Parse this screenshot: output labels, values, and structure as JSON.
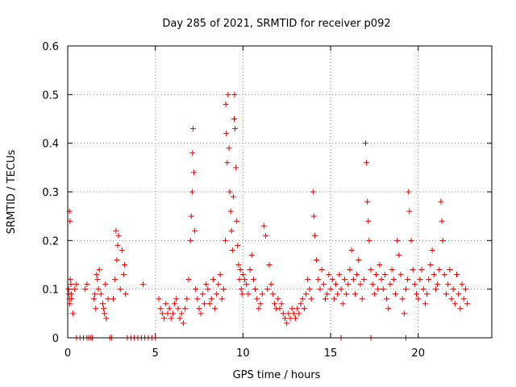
{
  "chart_data": {
    "type": "scatter",
    "title": "Day 285 of 2021, SRMTID for receiver p092",
    "xlabel": "GPS time / hours",
    "ylabel": "SRMTID / TECUs",
    "xlim": [
      0,
      24.2
    ],
    "ylim": [
      0,
      0.6
    ],
    "xticks": [
      0,
      5,
      10,
      15,
      20
    ],
    "xtick_labels": [
      "0",
      "5",
      "10",
      "15",
      "20"
    ],
    "yticks": [
      0,
      0.1,
      0.2,
      0.3,
      0.4,
      0.5,
      0.6
    ],
    "ytick_labels": [
      "0",
      "0.1",
      "0.2",
      "0.3",
      "0.4",
      "0.5",
      "0.6"
    ],
    "grid": true,
    "series": [
      {
        "name": "SRMTID",
        "color": "#e00000",
        "marker": "plus",
        "x": [
          0.05,
          0.08,
          0.1,
          0.12,
          0.15,
          0.18,
          0.2,
          0.22,
          0.1,
          0.13,
          0.3,
          0.4,
          0.5,
          1.0,
          1.1,
          1.5,
          1.6,
          1.7,
          1.8,
          1.9,
          2.0,
          2.1,
          2.2,
          2.3,
          1.55,
          1.65,
          1.75,
          2.05,
          2.15,
          2.6,
          2.7,
          2.8,
          2.9,
          3.0,
          3.1,
          3.2,
          3.3,
          2.75,
          2.85,
          3.25,
          4.3,
          5.2,
          5.3,
          5.4,
          5.5,
          5.6,
          5.7,
          5.8,
          5.9,
          6.0,
          6.1,
          6.2,
          6.3,
          6.4,
          6.5,
          6.6,
          6.7,
          6.8,
          6.9,
          7.0,
          7.05,
          7.1,
          7.12,
          7.15,
          7.2,
          7.25,
          7.3,
          7.4,
          7.5,
          7.6,
          7.7,
          7.8,
          7.9,
          8.0,
          8.1,
          8.2,
          8.3,
          8.4,
          8.5,
          8.6,
          8.7,
          8.8,
          8.9,
          9.0,
          9.02,
          9.05,
          9.1,
          9.15,
          9.2,
          9.25,
          9.3,
          9.35,
          9.4,
          9.45,
          9.5,
          9.52,
          9.55,
          9.6,
          9.65,
          9.7,
          9.75,
          9.8,
          9.85,
          9.9,
          9.95,
          10.0,
          10.1,
          10.2,
          10.3,
          10.4,
          10.5,
          10.6,
          10.7,
          10.8,
          10.9,
          11.0,
          11.1,
          11.2,
          11.3,
          11.4,
          11.5,
          11.6,
          11.7,
          11.8,
          11.9,
          12.0,
          12.1,
          12.2,
          12.3,
          12.4,
          12.5,
          12.6,
          12.7,
          12.8,
          12.9,
          13.0,
          13.1,
          13.2,
          13.3,
          13.4,
          13.5,
          13.6,
          13.7,
          13.8,
          13.9,
          14.0,
          14.05,
          14.1,
          14.2,
          14.3,
          14.4,
          14.5,
          14.6,
          14.7,
          14.8,
          14.9,
          15.0,
          15.1,
          15.2,
          15.3,
          15.4,
          15.5,
          15.6,
          15.7,
          15.8,
          15.9,
          16.0,
          16.1,
          16.2,
          16.3,
          16.4,
          16.5,
          16.6,
          16.7,
          16.8,
          16.9,
          17.0,
          17.05,
          17.1,
          17.15,
          17.2,
          17.3,
          17.4,
          17.5,
          17.6,
          17.7,
          17.8,
          17.9,
          18.0,
          18.1,
          18.2,
          18.3,
          18.4,
          18.5,
          18.6,
          18.7,
          18.8,
          18.9,
          19.0,
          19.1,
          19.2,
          19.3,
          19.4,
          19.45,
          19.5,
          19.6,
          19.7,
          19.8,
          19.9,
          20.0,
          20.1,
          20.2,
          20.3,
          20.4,
          20.5,
          20.6,
          20.7,
          20.8,
          20.9,
          21.0,
          21.1,
          21.2,
          21.3,
          21.35,
          21.4,
          21.5,
          21.6,
          21.7,
          21.8,
          21.9,
          22.0,
          22.1,
          22.2,
          22.3,
          22.4,
          22.5,
          22.6,
          22.7,
          22.8,
          0.5,
          0.7,
          0.9,
          1.1,
          1.2,
          1.3,
          1.4,
          2.4,
          2.5,
          3.4,
          3.6,
          3.8,
          4.0,
          4.2,
          4.4,
          4.6,
          4.8,
          5.0,
          15.6,
          17.3,
          19.3
        ],
        "y": [
          0.1,
          0.09,
          0.08,
          0.07,
          0.12,
          0.11,
          0.09,
          0.08,
          0.26,
          0.24,
          0.05,
          0.1,
          0.11,
          0.1,
          0.11,
          0.08,
          0.06,
          0.12,
          0.14,
          0.09,
          0.07,
          0.05,
          0.04,
          0.08,
          0.09,
          0.13,
          0.1,
          0.06,
          0.11,
          0.08,
          0.12,
          0.16,
          0.21,
          0.1,
          0.18,
          0.13,
          0.09,
          0.22,
          0.19,
          0.15,
          0.11,
          0.08,
          0.06,
          0.05,
          0.04,
          0.07,
          0.05,
          0.06,
          0.04,
          0.05,
          0.07,
          0.08,
          0.06,
          0.04,
          0.05,
          0.03,
          0.06,
          0.08,
          0.12,
          0.2,
          0.25,
          0.3,
          0.38,
          0.43,
          0.34,
          0.22,
          0.1,
          0.08,
          0.06,
          0.05,
          0.09,
          0.07,
          0.11,
          0.1,
          0.07,
          0.08,
          0.12,
          0.06,
          0.09,
          0.11,
          0.13,
          0.08,
          0.1,
          0.2,
          0.48,
          0.42,
          0.36,
          0.5,
          0.39,
          0.3,
          0.26,
          0.22,
          0.18,
          0.29,
          0.45,
          0.5,
          0.43,
          0.35,
          0.24,
          0.19,
          0.15,
          0.12,
          0.14,
          0.1,
          0.09,
          0.13,
          0.12,
          0.11,
          0.09,
          0.14,
          0.17,
          0.12,
          0.1,
          0.08,
          0.06,
          0.07,
          0.09,
          0.23,
          0.21,
          0.1,
          0.15,
          0.11,
          0.09,
          0.07,
          0.06,
          0.08,
          0.06,
          0.07,
          0.05,
          0.04,
          0.03,
          0.05,
          0.04,
          0.06,
          0.05,
          0.04,
          0.06,
          0.05,
          0.07,
          0.08,
          0.06,
          0.09,
          0.12,
          0.1,
          0.08,
          0.3,
          0.25,
          0.21,
          0.16,
          0.12,
          0.1,
          0.14,
          0.11,
          0.08,
          0.09,
          0.13,
          0.1,
          0.12,
          0.08,
          0.11,
          0.09,
          0.13,
          0.1,
          0.07,
          0.12,
          0.09,
          0.11,
          0.14,
          0.18,
          0.12,
          0.09,
          0.13,
          0.16,
          0.11,
          0.08,
          0.12,
          0.4,
          0.36,
          0.28,
          0.24,
          0.2,
          0.14,
          0.11,
          0.09,
          0.13,
          0.1,
          0.15,
          0.12,
          0.1,
          0.13,
          0.08,
          0.06,
          0.11,
          0.14,
          0.12,
          0.09,
          0.2,
          0.17,
          0.13,
          0.08,
          0.05,
          0.1,
          0.12,
          0.3,
          0.26,
          0.2,
          0.14,
          0.11,
          0.09,
          0.08,
          0.12,
          0.14,
          0.1,
          0.07,
          0.09,
          0.12,
          0.15,
          0.18,
          0.13,
          0.1,
          0.11,
          0.14,
          0.28,
          0.24,
          0.2,
          0.13,
          0.09,
          0.11,
          0.14,
          0.08,
          0.1,
          0.07,
          0.13,
          0.09,
          0.06,
          0.11,
          0.08,
          0.1,
          0.07,
          0,
          0,
          0,
          0,
          0,
          0,
          0,
          0,
          0,
          0,
          0,
          0,
          0,
          0,
          0,
          0,
          0,
          0,
          0,
          0,
          0
        ]
      }
    ]
  }
}
